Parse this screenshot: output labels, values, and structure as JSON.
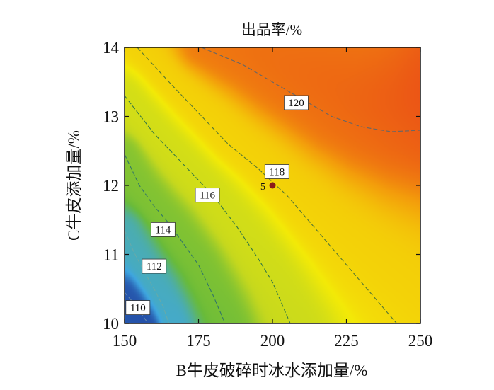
{
  "chart_data": {
    "type": "contour",
    "title": "出品率/%",
    "xlabel": "B牛皮破碎时冰水添加量/%",
    "ylabel": "C牛皮添加量/%",
    "xlim": [
      150,
      250
    ],
    "ylim": [
      10,
      14
    ],
    "xticks": [
      "150",
      "175",
      "200",
      "225",
      "250"
    ],
    "yticks": [
      "10",
      "11",
      "12",
      "13",
      "14"
    ],
    "colormap": [
      "#1d3a9a",
      "#3fa7e0",
      "#69bb3a",
      "#c5d81e",
      "#f3ea07",
      "#f39c0b",
      "#e8351a"
    ],
    "z_range": [
      108,
      122
    ],
    "contours": [
      {
        "level": 110,
        "label": "110",
        "color": "#6688aa",
        "points": [
          [
            150,
            10.45
          ],
          [
            153,
            10.3
          ],
          [
            156,
            10.12
          ],
          [
            158,
            10
          ]
        ],
        "label_at": [
          154.5,
          10.23
        ]
      },
      {
        "level": 112,
        "label": "112",
        "color": "#66aaaa",
        "points": [
          [
            150,
            11.35
          ],
          [
            153,
            11.05
          ],
          [
            156,
            10.8
          ],
          [
            160,
            10.5
          ],
          [
            163,
            10.25
          ],
          [
            165,
            10
          ]
        ],
        "label_at": [
          160,
          10.83
        ]
      },
      {
        "level": 114,
        "label": "114",
        "color": "#337766",
        "points": [
          [
            150,
            12.45
          ],
          [
            155,
            12.0
          ],
          [
            160,
            11.7
          ],
          [
            165,
            11.45
          ],
          [
            170,
            11.15
          ],
          [
            175,
            10.85
          ],
          [
            180,
            10.4
          ],
          [
            184,
            10
          ]
        ],
        "label_at": [
          163,
          11.36
        ]
      },
      {
        "level": 116,
        "label": "116",
        "color": "#337744",
        "points": [
          [
            150,
            13.3
          ],
          [
            160,
            12.75
          ],
          [
            170,
            12.3
          ],
          [
            180,
            11.85
          ],
          [
            188,
            11.4
          ],
          [
            195,
            10.95
          ],
          [
            200,
            10.6
          ],
          [
            206,
            10
          ]
        ],
        "label_at": [
          178,
          11.86
        ]
      },
      {
        "level": 118,
        "label": "118",
        "color": "#557733",
        "points": [
          [
            150,
            14.2
          ],
          [
            165,
            13.5
          ],
          [
            175,
            13.05
          ],
          [
            185,
            12.6
          ],
          [
            195,
            12.25
          ],
          [
            205,
            11.85
          ],
          [
            215,
            11.35
          ],
          [
            225,
            10.85
          ],
          [
            235,
            10.35
          ],
          [
            242,
            10
          ]
        ],
        "label_at": [
          201.5,
          12.2
        ]
      },
      {
        "level": 120,
        "label": "120",
        "color": "#666666",
        "points": [
          [
            176,
            14.0
          ],
          [
            190,
            13.75
          ],
          [
            200,
            13.5
          ],
          [
            210,
            13.25
          ],
          [
            220,
            13.0
          ],
          [
            230,
            12.85
          ],
          [
            240,
            12.78
          ],
          [
            250,
            12.8
          ]
        ],
        "label_at": [
          208,
          13.2
        ]
      }
    ],
    "points": [
      {
        "label": "5",
        "x": 200,
        "y": 12,
        "color": "#8b1a1a"
      }
    ]
  }
}
